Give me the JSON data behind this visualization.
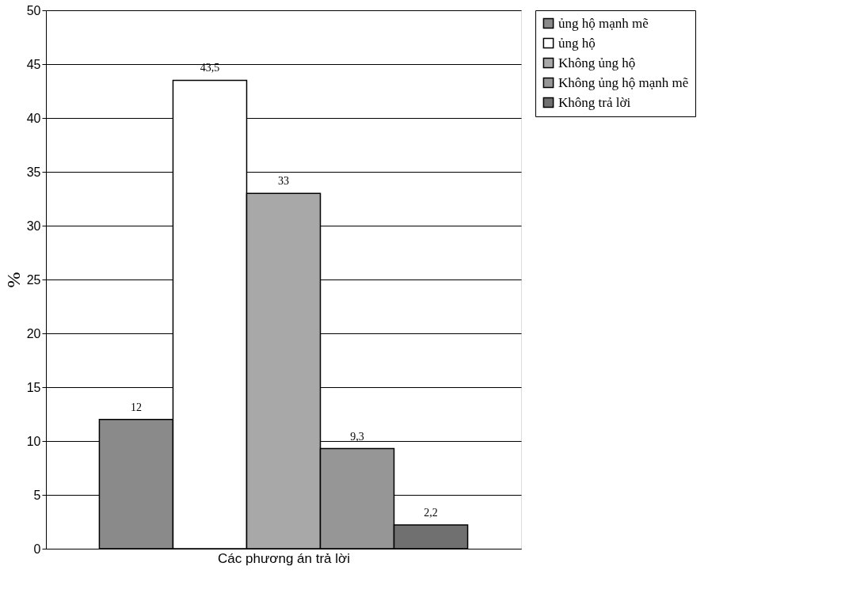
{
  "chart_data": {
    "type": "bar",
    "xlabel": "Các phương án trả lời",
    "ylabel": "%",
    "categories": [
      null
    ],
    "series": [
      {
        "name": "ủng hộ mạnh mẽ",
        "color": "#8a8a8a",
        "values": [
          12
        ],
        "value_labels": [
          "12"
        ]
      },
      {
        "name": "ủng hộ",
        "color": "#ffffff",
        "values": [
          43.5
        ],
        "value_labels": [
          "43,5"
        ]
      },
      {
        "name": "Không ủng hộ",
        "color": "#a8a8a8",
        "values": [
          33
        ],
        "value_labels": [
          "33"
        ]
      },
      {
        "name": "Không ủng hộ mạnh mẽ",
        "color": "#969696",
        "values": [
          9.3
        ],
        "value_labels": [
          "9,3"
        ]
      },
      {
        "name": "Không trả lời",
        "color": "#707070",
        "values": [
          2.2
        ],
        "value_labels": [
          "2,2"
        ]
      }
    ],
    "ylim": [
      0,
      50
    ],
    "yticks": [
      0,
      5,
      10,
      15,
      20,
      25,
      30,
      35,
      40,
      45,
      50
    ],
    "grid": "y",
    "legend": "right",
    "tick_labels": "y"
  }
}
